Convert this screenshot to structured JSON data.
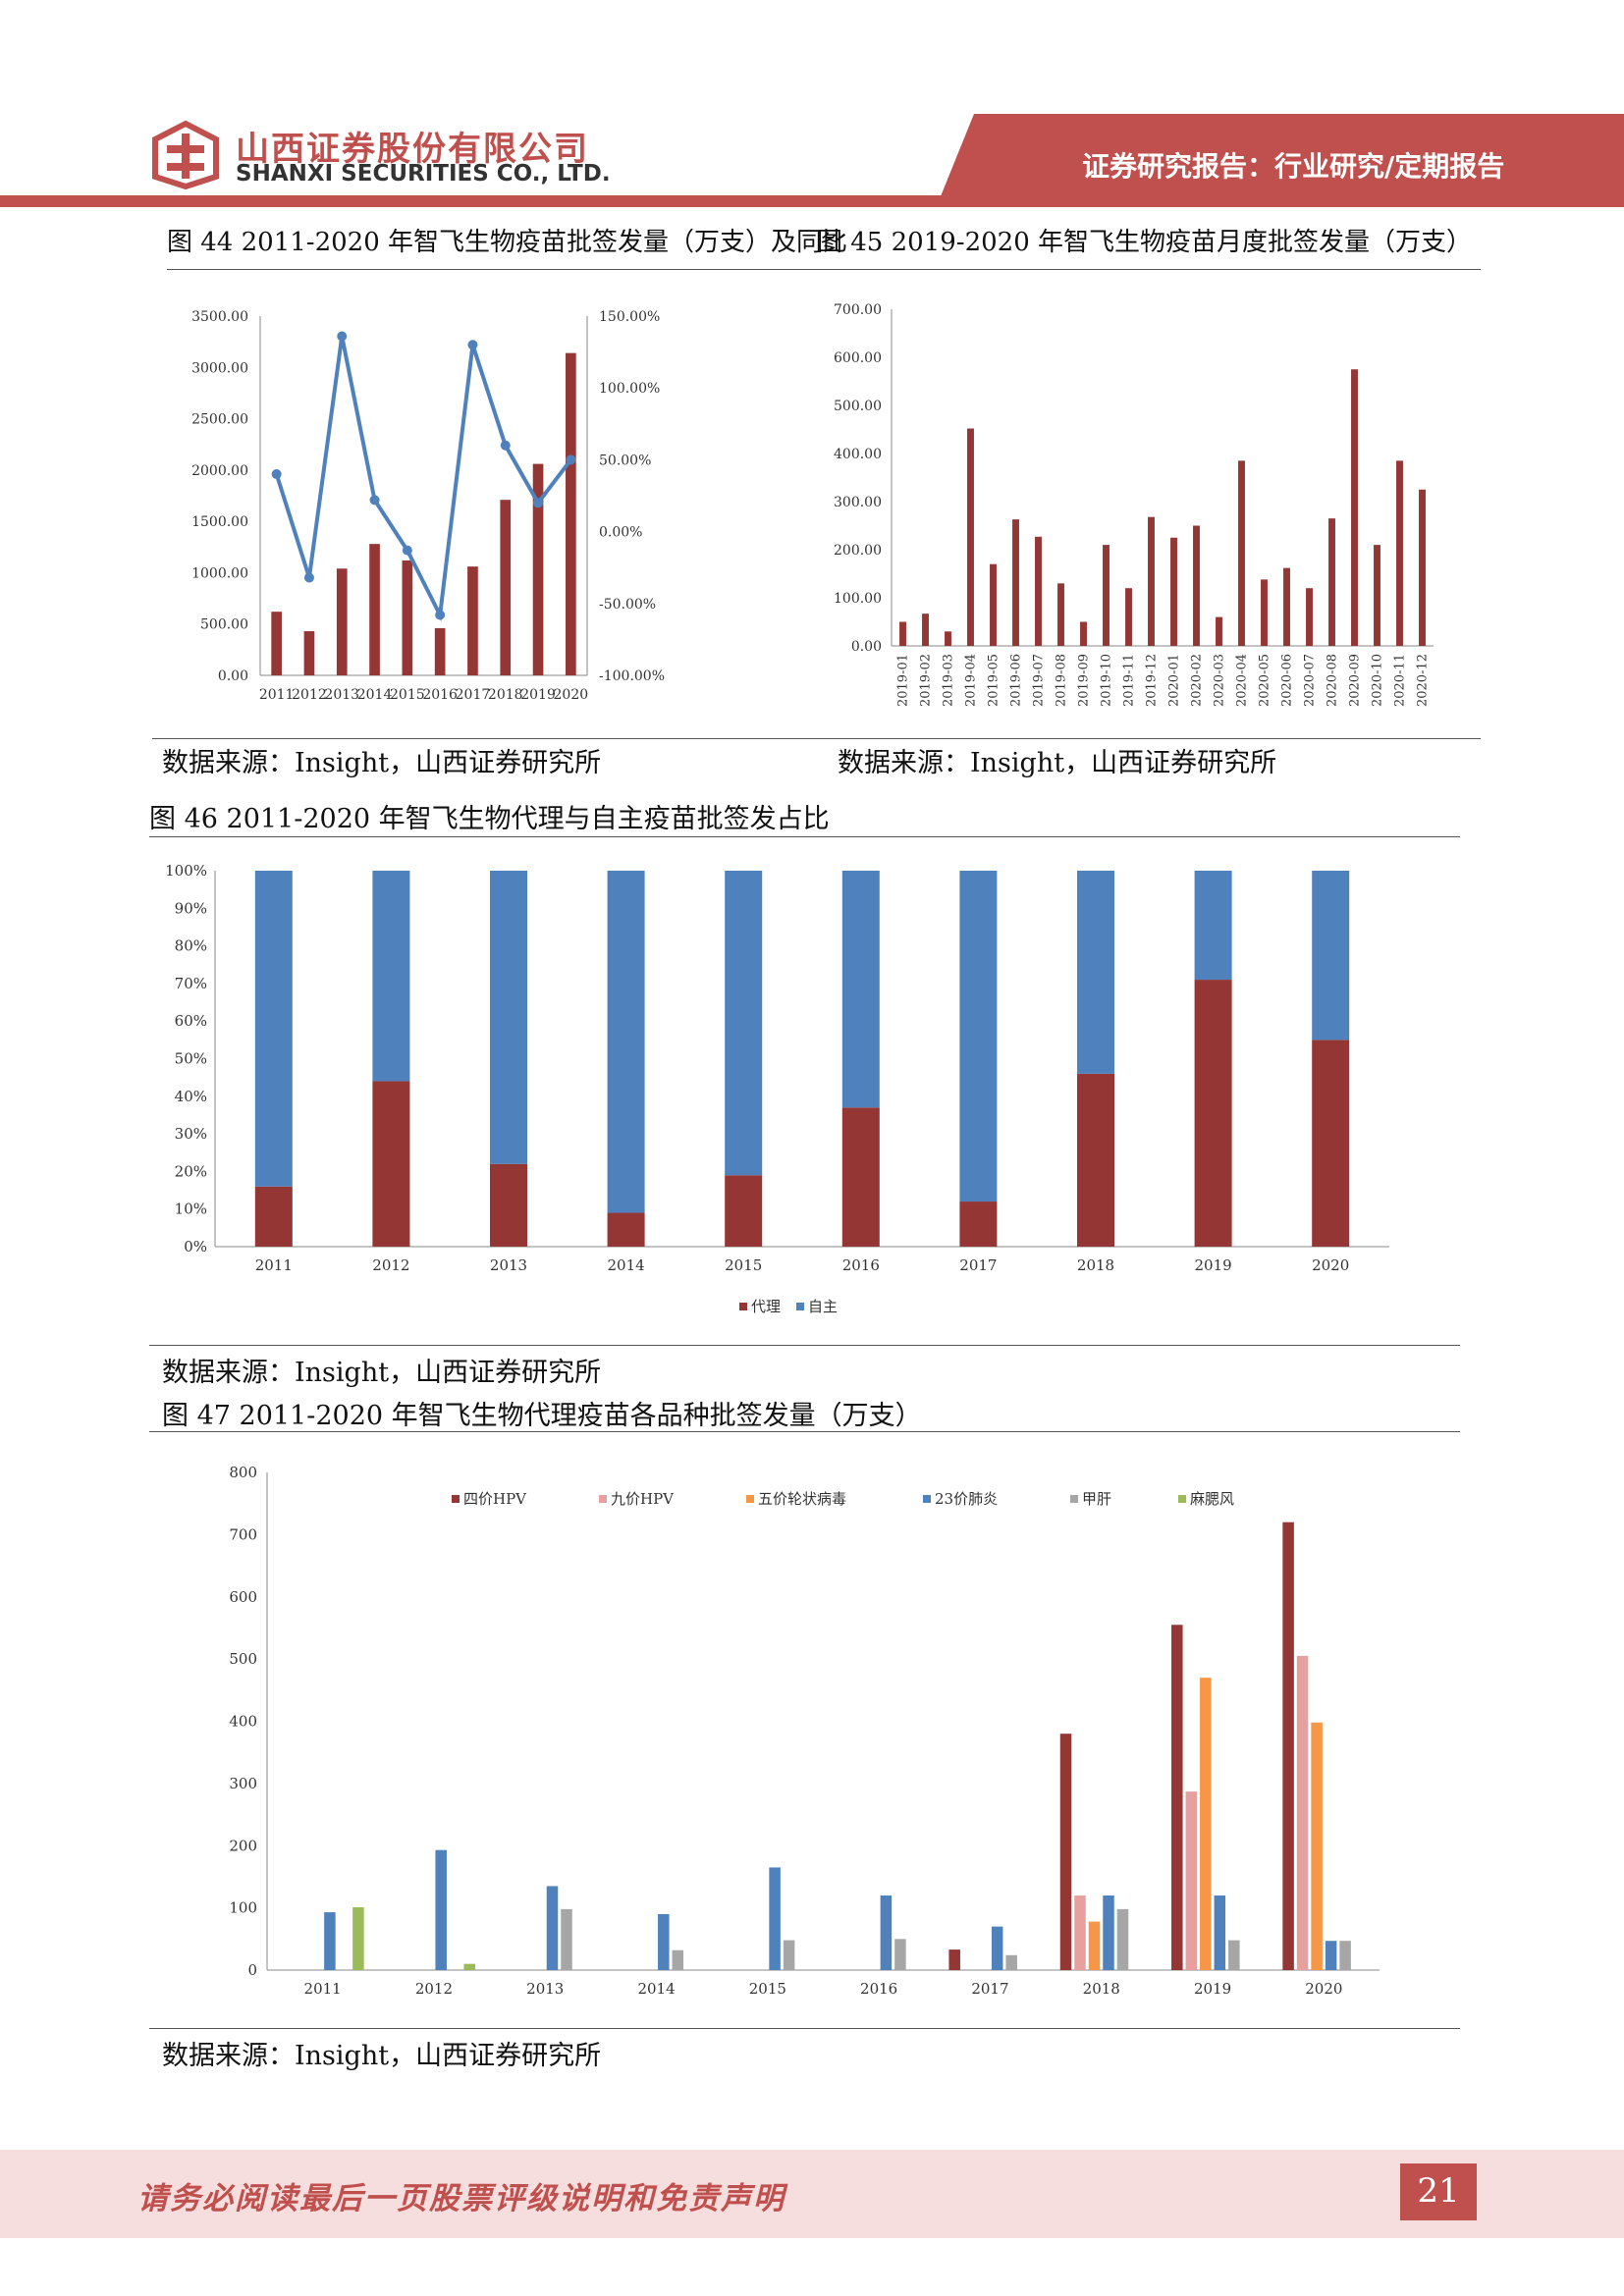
{
  "header": {
    "company_cn": "山西证券股份有限公司",
    "company_en": "SHANXI SECURITIES CO., LTD.",
    "report_type": "证券研究报告：行业研究/定期报告"
  },
  "captions": {
    "fig44": "图 44 2011-2020 年智飞生物疫苗批签发量（万支）及同比",
    "fig45": "图 45 2019-2020 年智飞生物疫苗月度批签发量（万支）",
    "fig46": "图 46 2011-2020 年智飞生物代理与自主疫苗批签发占比",
    "fig47": "图 47 2011-2020 年智飞生物代理疫苗各品种批签发量（万支）"
  },
  "sources": {
    "fig44": "数据来源：Insight，山西证券研究所",
    "fig45": "数据来源：Insight，山西证券研究所",
    "fig46": "数据来源：Insight，山西证券研究所",
    "fig47": "数据来源：Insight，山西证券研究所"
  },
  "footer": {
    "disclaimer": "请务必阅读最后一页股票评级说明和免责声明",
    "page_number": "21"
  },
  "colors": {
    "brand_red": "#c0504d",
    "dark_red": "#943634",
    "blue": "#4f81bd",
    "pink": "#e6a0a0",
    "orange": "#f79646",
    "gray": "#a6a6a6",
    "green": "#9bbb59",
    "footer_bg": "#f7dede"
  },
  "chart_data": [
    {
      "id": "fig44",
      "type": "bar",
      "categories": [
        "2011",
        "2012",
        "2013",
        "2014",
        "2015",
        "2016",
        "2017",
        "2018",
        "2019",
        "2020"
      ],
      "series": [
        {
          "values": [
            620,
            430,
            1040,
            1280,
            1120,
            460,
            1060,
            1710,
            2060,
            3140
          ],
          "axis": "left",
          "kind": "bar"
        },
        {
          "values": [
            40,
            -32,
            136,
            22,
            -13,
            -58,
            130,
            60,
            20,
            50
          ],
          "axis": "right",
          "kind": "line",
          "unit": "%"
        }
      ],
      "ylim_left": [
        0,
        3500
      ],
      "yticks_left": [
        "0.00",
        "500.00",
        "1000.00",
        "1500.00",
        "2000.00",
        "2500.00",
        "3000.00",
        "3500.00"
      ],
      "ylim_right": [
        -100,
        150
      ],
      "yticks_right": [
        "-100.00%",
        "-50.00%",
        "0.00%",
        "50.00%",
        "100.00%",
        "150.00%"
      ]
    },
    {
      "id": "fig45",
      "type": "bar",
      "categories": [
        "2019-01",
        "2019-02",
        "2019-03",
        "2019-04",
        "2019-05",
        "2019-06",
        "2019-07",
        "2019-08",
        "2019-09",
        "2019-10",
        "2019-11",
        "2019-12",
        "2020-01",
        "2020-02",
        "2020-03",
        "2020-04",
        "2020-05",
        "2020-06",
        "2020-07",
        "2020-08",
        "2020-09",
        "2020-10",
        "2020-11",
        "2020-12"
      ],
      "values": [
        50,
        67,
        30,
        452,
        170,
        263,
        227,
        130,
        50,
        210,
        120,
        268,
        225,
        250,
        60,
        385,
        138,
        162,
        120,
        265,
        575,
        210,
        385,
        325
      ],
      "ylim": [
        0,
        700
      ],
      "yticks": [
        "0.00",
        "100.00",
        "200.00",
        "300.00",
        "400.00",
        "500.00",
        "600.00",
        "700.00"
      ]
    },
    {
      "id": "fig46",
      "type": "bar",
      "stacked": true,
      "categories": [
        "2011",
        "2012",
        "2013",
        "2014",
        "2015",
        "2016",
        "2017",
        "2018",
        "2019",
        "2020"
      ],
      "series": [
        {
          "name": "代理",
          "values": [
            16,
            44,
            22,
            9,
            19,
            37,
            12,
            46,
            71,
            55
          ]
        },
        {
          "name": "自主",
          "values": [
            84,
            56,
            78,
            91,
            81,
            63,
            88,
            54,
            29,
            45
          ]
        }
      ],
      "ylim": [
        0,
        100
      ],
      "yticks": [
        "0%",
        "10%",
        "20%",
        "30%",
        "40%",
        "50%",
        "60%",
        "70%",
        "80%",
        "90%",
        "100%"
      ],
      "legend": "bottom"
    },
    {
      "id": "fig47",
      "type": "bar",
      "categories": [
        "2011",
        "2012",
        "2013",
        "2014",
        "2015",
        "2016",
        "2017",
        "2018",
        "2019",
        "2020"
      ],
      "series": [
        {
          "name": "四价HPV",
          "values": [
            0,
            0,
            0,
            0,
            0,
            0,
            33,
            380,
            555,
            720
          ]
        },
        {
          "name": "九价HPV",
          "values": [
            0,
            0,
            0,
            0,
            0,
            0,
            0,
            120,
            287,
            505
          ]
        },
        {
          "name": "五价轮状病毒",
          "values": [
            0,
            0,
            0,
            0,
            0,
            0,
            0,
            78,
            470,
            398
          ]
        },
        {
          "name": "23价肺炎",
          "values": [
            93,
            193,
            135,
            90,
            165,
            120,
            70,
            120,
            120,
            47
          ]
        },
        {
          "name": "甲肝",
          "values": [
            0,
            0,
            98,
            32,
            48,
            50,
            24,
            98,
            48,
            47
          ]
        },
        {
          "name": "麻腮风",
          "values": [
            101,
            10,
            0,
            0,
            0,
            0,
            0,
            0,
            0,
            0
          ]
        }
      ],
      "ylim": [
        0,
        800
      ],
      "yticks": [
        "0",
        "100",
        "200",
        "300",
        "400",
        "500",
        "600",
        "700",
        "800"
      ],
      "legend": "top"
    }
  ]
}
